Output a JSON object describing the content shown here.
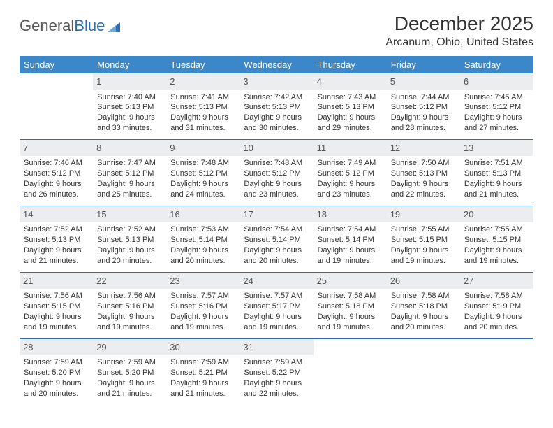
{
  "logo": {
    "text_a": "General",
    "text_b": "Blue"
  },
  "title": "December 2025",
  "location": "Arcanum, Ohio, United States",
  "colors": {
    "header_bg": "#3b87c8",
    "header_text": "#ffffff",
    "daynum_bg": "#ecedee",
    "rule": "#2a6fb3",
    "logo_gray": "#5a5a5a",
    "logo_blue": "#2a6fb3"
  },
  "day_headers": [
    "Sunday",
    "Monday",
    "Tuesday",
    "Wednesday",
    "Thursday",
    "Friday",
    "Saturday"
  ],
  "weeks": [
    [
      {
        "n": "",
        "t": ""
      },
      {
        "n": "1",
        "t": "Sunrise: 7:40 AM\nSunset: 5:13 PM\nDaylight: 9 hours and 33 minutes."
      },
      {
        "n": "2",
        "t": "Sunrise: 7:41 AM\nSunset: 5:13 PM\nDaylight: 9 hours and 31 minutes."
      },
      {
        "n": "3",
        "t": "Sunrise: 7:42 AM\nSunset: 5:13 PM\nDaylight: 9 hours and 30 minutes."
      },
      {
        "n": "4",
        "t": "Sunrise: 7:43 AM\nSunset: 5:13 PM\nDaylight: 9 hours and 29 minutes."
      },
      {
        "n": "5",
        "t": "Sunrise: 7:44 AM\nSunset: 5:12 PM\nDaylight: 9 hours and 28 minutes."
      },
      {
        "n": "6",
        "t": "Sunrise: 7:45 AM\nSunset: 5:12 PM\nDaylight: 9 hours and 27 minutes."
      }
    ],
    [
      {
        "n": "7",
        "t": "Sunrise: 7:46 AM\nSunset: 5:12 PM\nDaylight: 9 hours and 26 minutes."
      },
      {
        "n": "8",
        "t": "Sunrise: 7:47 AM\nSunset: 5:12 PM\nDaylight: 9 hours and 25 minutes."
      },
      {
        "n": "9",
        "t": "Sunrise: 7:48 AM\nSunset: 5:12 PM\nDaylight: 9 hours and 24 minutes."
      },
      {
        "n": "10",
        "t": "Sunrise: 7:48 AM\nSunset: 5:12 PM\nDaylight: 9 hours and 23 minutes."
      },
      {
        "n": "11",
        "t": "Sunrise: 7:49 AM\nSunset: 5:12 PM\nDaylight: 9 hours and 23 minutes."
      },
      {
        "n": "12",
        "t": "Sunrise: 7:50 AM\nSunset: 5:13 PM\nDaylight: 9 hours and 22 minutes."
      },
      {
        "n": "13",
        "t": "Sunrise: 7:51 AM\nSunset: 5:13 PM\nDaylight: 9 hours and 21 minutes."
      }
    ],
    [
      {
        "n": "14",
        "t": "Sunrise: 7:52 AM\nSunset: 5:13 PM\nDaylight: 9 hours and 21 minutes."
      },
      {
        "n": "15",
        "t": "Sunrise: 7:52 AM\nSunset: 5:13 PM\nDaylight: 9 hours and 20 minutes."
      },
      {
        "n": "16",
        "t": "Sunrise: 7:53 AM\nSunset: 5:14 PM\nDaylight: 9 hours and 20 minutes."
      },
      {
        "n": "17",
        "t": "Sunrise: 7:54 AM\nSunset: 5:14 PM\nDaylight: 9 hours and 20 minutes."
      },
      {
        "n": "18",
        "t": "Sunrise: 7:54 AM\nSunset: 5:14 PM\nDaylight: 9 hours and 19 minutes."
      },
      {
        "n": "19",
        "t": "Sunrise: 7:55 AM\nSunset: 5:15 PM\nDaylight: 9 hours and 19 minutes."
      },
      {
        "n": "20",
        "t": "Sunrise: 7:55 AM\nSunset: 5:15 PM\nDaylight: 9 hours and 19 minutes."
      }
    ],
    [
      {
        "n": "21",
        "t": "Sunrise: 7:56 AM\nSunset: 5:15 PM\nDaylight: 9 hours and 19 minutes."
      },
      {
        "n": "22",
        "t": "Sunrise: 7:56 AM\nSunset: 5:16 PM\nDaylight: 9 hours and 19 minutes."
      },
      {
        "n": "23",
        "t": "Sunrise: 7:57 AM\nSunset: 5:16 PM\nDaylight: 9 hours and 19 minutes."
      },
      {
        "n": "24",
        "t": "Sunrise: 7:57 AM\nSunset: 5:17 PM\nDaylight: 9 hours and 19 minutes."
      },
      {
        "n": "25",
        "t": "Sunrise: 7:58 AM\nSunset: 5:18 PM\nDaylight: 9 hours and 19 minutes."
      },
      {
        "n": "26",
        "t": "Sunrise: 7:58 AM\nSunset: 5:18 PM\nDaylight: 9 hours and 20 minutes."
      },
      {
        "n": "27",
        "t": "Sunrise: 7:58 AM\nSunset: 5:19 PM\nDaylight: 9 hours and 20 minutes."
      }
    ],
    [
      {
        "n": "28",
        "t": "Sunrise: 7:59 AM\nSunset: 5:20 PM\nDaylight: 9 hours and 20 minutes."
      },
      {
        "n": "29",
        "t": "Sunrise: 7:59 AM\nSunset: 5:20 PM\nDaylight: 9 hours and 21 minutes."
      },
      {
        "n": "30",
        "t": "Sunrise: 7:59 AM\nSunset: 5:21 PM\nDaylight: 9 hours and 21 minutes."
      },
      {
        "n": "31",
        "t": "Sunrise: 7:59 AM\nSunset: 5:22 PM\nDaylight: 9 hours and 22 minutes."
      },
      {
        "n": "",
        "t": ""
      },
      {
        "n": "",
        "t": ""
      },
      {
        "n": "",
        "t": ""
      }
    ]
  ]
}
